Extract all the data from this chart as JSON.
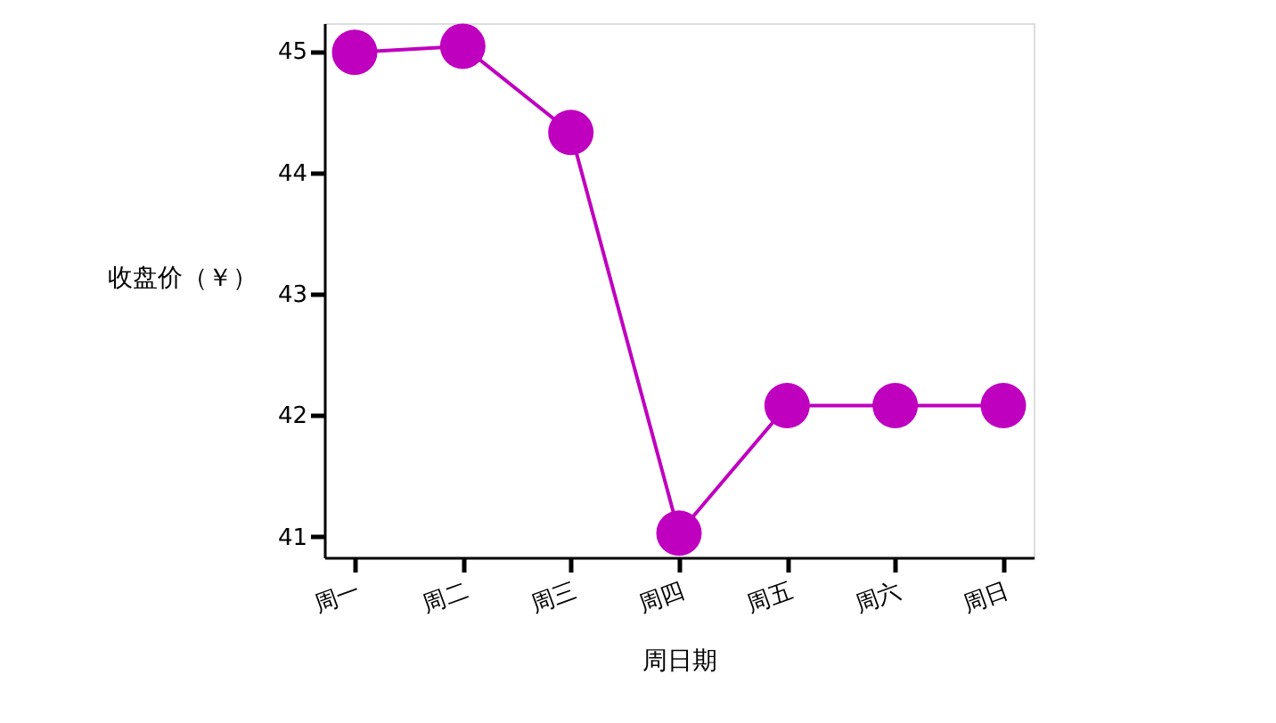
{
  "chart_data": {
    "type": "line",
    "xlabel": "周日期",
    "ylabel": "收盘价（￥）",
    "categories": [
      "周一",
      "周二",
      "周三",
      "周四",
      "周五",
      "周六",
      "周日"
    ],
    "series": [
      {
        "color": "#bf00bf",
        "values": [
          44.99,
          45.04,
          44.33,
          41.03,
          42.08,
          42.08,
          42.08
        ]
      }
    ],
    "ylim": [
      40.83,
      45.23
    ],
    "yticks": [
      41,
      42,
      43,
      44,
      45
    ],
    "grid": false,
    "marker": "circle",
    "line_style": "solid"
  }
}
